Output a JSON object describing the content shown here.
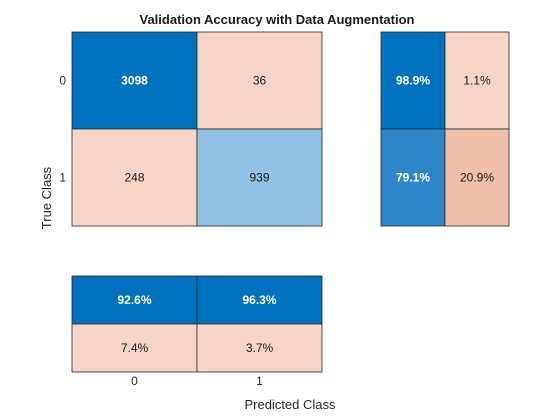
{
  "chart_data": {
    "type": "heatmap",
    "title": "Validation Accuracy with Data Augmentation",
    "xlabel": "Predicted Class",
    "ylabel": "True Class",
    "classes": [
      "0",
      "1"
    ],
    "confusion_matrix": {
      "rows": [
        {
          "true_class": "0",
          "values": [
            3098,
            36
          ]
        },
        {
          "true_class": "1",
          "values": [
            248,
            939
          ]
        }
      ]
    },
    "row_summary": {
      "rows": [
        {
          "true_class": "0",
          "values": [
            "98.9%",
            "1.1%"
          ],
          "fractions": [
            0.989,
            0.011
          ]
        },
        {
          "true_class": "1",
          "values": [
            "79.1%",
            "20.9%"
          ],
          "fractions": [
            0.791,
            0.209
          ]
        }
      ]
    },
    "column_summary": {
      "rows": [
        {
          "values": [
            "92.6%",
            "96.3%"
          ],
          "fractions": [
            0.926,
            0.963
          ]
        },
        {
          "values": [
            "7.4%",
            "3.7%"
          ],
          "fractions": [
            0.074,
            0.037
          ]
        }
      ]
    },
    "colors": {
      "correct_strong": "#0072bd",
      "correct_light": "#92c2e3",
      "correct_mid": "#2e86c9",
      "incorrect_light": "#f6d5c8",
      "incorrect_strong": "#efbfa9",
      "text_dark": "#1a1a1a",
      "text_light": "#ffffff",
      "grid": "#262626"
    }
  }
}
